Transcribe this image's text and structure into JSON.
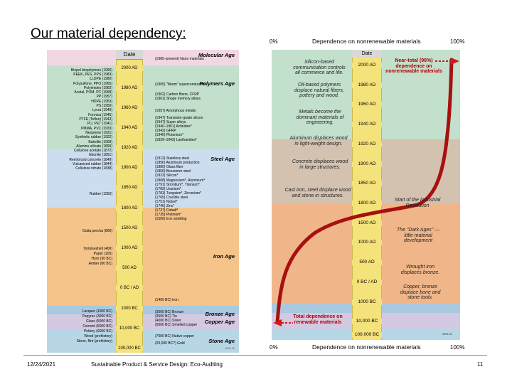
{
  "slide": {
    "title": "Our material dependency:"
  },
  "left_chart": {
    "header": "Date",
    "ticks": [
      "2000 AD",
      "1980 AD",
      "1960 AD",
      "1940 AD",
      "1920 AD",
      "1900 AD",
      "1850 AD",
      "1800 AD",
      "1500 AD",
      "1000 AD",
      "500 AD",
      "0 BC / AD",
      "1000 BC",
      "10,000 BC",
      "100,000 BC"
    ],
    "materials": [
      "Biopol biopolymers (1990)",
      "PEEK, PES, PPS (1983)",
      "LLDPE (1980)",
      "Polysulfone, PPO (1965)",
      "Polyimides (1962)",
      "Acetal, POM, PC (1958)",
      "PP (1957)",
      "HDPE (1953)",
      "PS (1950)",
      "Lycra (1949)",
      "Formica (1945)",
      "PTFE (Teflon) (1943)",
      "PU, PET (1941)",
      "PMMA, PVC (1933)",
      "Neoprene (1931)",
      "Synthetic rubber (1922)",
      "Bakelite (1909)",
      "Alumino-silicate (1890)",
      "Cellulose acetate (1872)",
      "Ebonite (1851)",
      "Reinforced concrete (1849)",
      "Vulcanized rubber (1844)",
      "Cellulose nitrate (1838)",
      "Rubber (1550)",
      "Gutta percha (800)",
      "Tortoiseshell (400)",
      "Paper (105)",
      "Horn (50 BC)",
      "Amber (80 BC)",
      "Lacquer (1000 BC)",
      "Papyrus (3000 BC)",
      "Glass (5000 BC)",
      "Cement (5000 BC)",
      "Pottery (6000 BC)",
      "Wood (prehistory)",
      "Stone, flint (prehistory)"
    ],
    "events": [
      "(1980–present) Nano materials",
      "(1965) \"Warm\" superconductors",
      "(1962) Carbon fibers, CFRP",
      "(1961) Shape memory alloys",
      "(1957) Amorphous metals",
      "(1947) Transistor-grade silicon",
      "(1947) Super alloys",
      "(1940–1961) Actinides*",
      "(1942) GFRP",
      "(1940) Plutonium*",
      "(1839–1943) Lanthanides*",
      "(1912) Stainless steel",
      "(1890) Aluminum production",
      "(1880) Glass fiber",
      "(1856) Bessemer steel",
      "(1823) Silicon*",
      "(1808) Magnesium*, Aluminum*",
      "(1791) Strontium*, Titanium*",
      "(1789) Uranium*",
      "(1783) Tungsten*, Zirconium*",
      "(1765) Crucible steel",
      "(1751) Nickel*",
      "(1746) Zinc*",
      "(1737) Cobalt*",
      "(1735) Platinum*",
      "(1500) Iron smelting",
      "(1400 BC) Iron",
      "(3500 BC) Bronze",
      "(3500 BC) Tin",
      "(4000 BC) Silver",
      "(5000 BC) Smelted copper",
      "(7000 BC) Native copper",
      "(20,000 BC?) Gold"
    ],
    "eras": [
      "Molecular Age",
      "Polymers Age",
      "Steel Age",
      "Iron Age",
      "Bronze Age",
      "Copper Age",
      "Stone Age"
    ],
    "credit": "MFA 10",
    "colors": {
      "stone": "#b8d7e6",
      "copper": "#d4c9e2",
      "bronze": "#a8c9e0",
      "iron": "#f4c48b",
      "steel": "#cdddf0",
      "polymers": "#c2e0cc",
      "molecular": "#f3d6e4"
    }
  },
  "right_chart": {
    "top_left": "0%",
    "top_title": "Dependence on nonrenewable materials",
    "top_right": "100%",
    "bottom_left": "0%",
    "bottom_title": "Dependence on nonrenewable materials",
    "bottom_right": "100%",
    "header": "Date",
    "ticks": [
      "2000 AD",
      "1980 AD",
      "1960 AD",
      "1940 AD",
      "1920 AD",
      "1900 AD",
      "1850 AD",
      "1800 AD",
      "1500 AD",
      "1000 AD",
      "500 AD",
      "0 BC / AD",
      "1000 BC",
      "10,000 BC",
      "100,000 BC"
    ],
    "notes": {
      "silicon": "Silicon-based communication controls all commerce and life.",
      "oil": "Oil-based polymers displace natural fibers, pottery and wood.",
      "metals": "Metals become the dominant materials of engineering.",
      "aluminum": "Aluminum displaces wood in light-weight design.",
      "concrete": "Concrete displaces wood in large structures.",
      "cast_iron": "Cast iron, steel displace wood and stone in structures.",
      "industrial": "Start of the Industrial Revolution",
      "dark_ages": "The \"Dark Ages\" — little material development",
      "wrought_iron": "Wrought iron displaces bronze.",
      "copper_bronze": "Copper, bronze displace bone and stone tools.",
      "near_total": "Near-total (98%) dependence on nonrenewable materials",
      "renewable": "Total dependence on renewable materials"
    },
    "credit": "MFA 10",
    "colors": {
      "curve": "#a81010",
      "arrow": "#d01818"
    }
  },
  "footer": {
    "date": "12/24/2021",
    "course": "Sustainable Product & Service Design: Eco-Auditing",
    "page": "11"
  }
}
